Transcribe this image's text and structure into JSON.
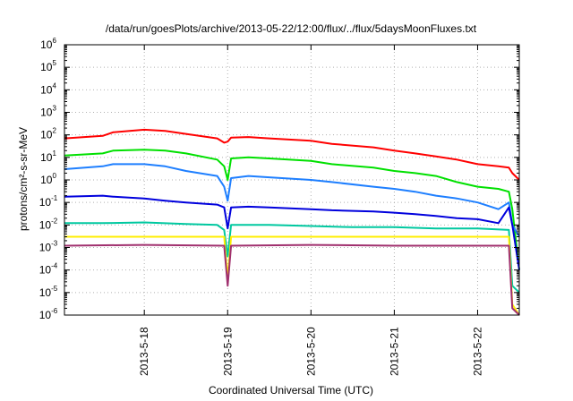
{
  "chart_data": {
    "type": "line",
    "title": "/data/run/goesPlots/archive/2013-05-22/12:00/flux/../flux/5daysMoonFluxes.txt",
    "xlabel": "Coordinated Universal Time (UTC)",
    "ylabel": "protons/cm²-s-sr-MeV",
    "yscale": "log",
    "ylim": [
      1e-06,
      1000000.0
    ],
    "xlim": [
      "2013-05-17 01:00",
      "2013-05-22 12:00"
    ],
    "grid": true,
    "legend": "none",
    "x_ticks": [
      "2013-5-18",
      "2013-5-19",
      "2013-5-20",
      "2013-5-21",
      "2013-5-22"
    ],
    "y_ticks": [
      {
        "base": "10",
        "exp": "-6"
      },
      {
        "base": "10",
        "exp": "-5"
      },
      {
        "base": "10",
        "exp": "-4"
      },
      {
        "base": "10",
        "exp": "-3"
      },
      {
        "base": "10",
        "exp": "-2"
      },
      {
        "base": "10",
        "exp": "-1"
      },
      {
        "base": "10",
        "exp": "0"
      },
      {
        "base": "10",
        "exp": "1"
      },
      {
        "base": "10",
        "exp": "2"
      },
      {
        "base": "10",
        "exp": "3"
      },
      {
        "base": "10",
        "exp": "4"
      },
      {
        "base": "10",
        "exp": "5"
      },
      {
        "base": "10",
        "exp": "6"
      }
    ],
    "series": [
      {
        "color": "#ff0000",
        "points": [
          [
            "2013-05-17 01:00",
            70
          ],
          [
            "2013-05-17 12:00",
            90
          ],
          [
            "2013-05-17 15:00",
            130
          ],
          [
            "2013-05-18 00:00",
            170
          ],
          [
            "2013-05-18 06:00",
            150
          ],
          [
            "2013-05-18 12:00",
            110
          ],
          [
            "2013-05-18 21:00",
            70
          ],
          [
            "2013-05-18 23:00",
            45
          ],
          [
            "2013-05-19 00:00",
            50
          ],
          [
            "2013-05-19 01:00",
            75
          ],
          [
            "2013-05-19 06:00",
            80
          ],
          [
            "2013-05-19 12:00",
            70
          ],
          [
            "2013-05-20 00:00",
            55
          ],
          [
            "2013-05-20 06:00",
            40
          ],
          [
            "2013-05-20 18:00",
            28
          ],
          [
            "2013-05-21 00:00",
            20
          ],
          [
            "2013-05-21 06:00",
            15
          ],
          [
            "2013-05-21 12:00",
            11
          ],
          [
            "2013-05-21 18:00",
            8
          ],
          [
            "2013-05-22 00:00",
            5
          ],
          [
            "2013-05-22 06:00",
            4
          ],
          [
            "2013-05-22 09:00",
            3.5
          ],
          [
            "2013-05-22 10:00",
            2
          ],
          [
            "2013-05-22 12:00",
            1
          ]
        ]
      },
      {
        "color": "#00e000",
        "points": [
          [
            "2013-05-17 01:00",
            12
          ],
          [
            "2013-05-17 12:00",
            15
          ],
          [
            "2013-05-17 15:00",
            20
          ],
          [
            "2013-05-18 00:00",
            22
          ],
          [
            "2013-05-18 06:00",
            20
          ],
          [
            "2013-05-18 12:00",
            15
          ],
          [
            "2013-05-18 21:00",
            8
          ],
          [
            "2013-05-18 23:00",
            4
          ],
          [
            "2013-05-19 00:00",
            1
          ],
          [
            "2013-05-19 01:00",
            9
          ],
          [
            "2013-05-19 06:00",
            10
          ],
          [
            "2013-05-19 12:00",
            9
          ],
          [
            "2013-05-20 00:00",
            7
          ],
          [
            "2013-05-20 06:00",
            5
          ],
          [
            "2013-05-20 18:00",
            3.5
          ],
          [
            "2013-05-21 00:00",
            2.5
          ],
          [
            "2013-05-21 06:00",
            2
          ],
          [
            "2013-05-21 12:00",
            1.5
          ],
          [
            "2013-05-21 18:00",
            0.8
          ],
          [
            "2013-05-22 00:00",
            0.5
          ],
          [
            "2013-05-22 06:00",
            0.4
          ],
          [
            "2013-05-22 09:00",
            0.3
          ],
          [
            "2013-05-22 10:00",
            0.05
          ],
          [
            "2013-05-22 12:00",
            0.0001
          ]
        ]
      },
      {
        "color": "#1e7fff",
        "points": [
          [
            "2013-05-17 01:00",
            3
          ],
          [
            "2013-05-17 12:00",
            4
          ],
          [
            "2013-05-17 15:00",
            5
          ],
          [
            "2013-05-18 00:00",
            5
          ],
          [
            "2013-05-18 06:00",
            4
          ],
          [
            "2013-05-18 12:00",
            2.5
          ],
          [
            "2013-05-18 21:00",
            1.5
          ],
          [
            "2013-05-18 23:00",
            0.5
          ],
          [
            "2013-05-19 00:00",
            0.12
          ],
          [
            "2013-05-19 01:00",
            1.2
          ],
          [
            "2013-05-19 06:00",
            1.5
          ],
          [
            "2013-05-19 12:00",
            1.3
          ],
          [
            "2013-05-20 00:00",
            1
          ],
          [
            "2013-05-20 06:00",
            0.8
          ],
          [
            "2013-05-20 18:00",
            0.5
          ],
          [
            "2013-05-21 00:00",
            0.4
          ],
          [
            "2013-05-21 06:00",
            0.3
          ],
          [
            "2013-05-21 12:00",
            0.2
          ],
          [
            "2013-05-21 18:00",
            0.15
          ],
          [
            "2013-05-22 00:00",
            0.1
          ],
          [
            "2013-05-22 06:00",
            0.05
          ],
          [
            "2013-05-22 09:00",
            0.1
          ],
          [
            "2013-05-22 10:00",
            0.01
          ],
          [
            "2013-05-22 12:00",
            0.003
          ]
        ]
      },
      {
        "color": "#0000dd",
        "points": [
          [
            "2013-05-17 01:00",
            0.18
          ],
          [
            "2013-05-17 12:00",
            0.2
          ],
          [
            "2013-05-17 15:00",
            0.18
          ],
          [
            "2013-05-18 00:00",
            0.15
          ],
          [
            "2013-05-18 06:00",
            0.12
          ],
          [
            "2013-05-18 12:00",
            0.1
          ],
          [
            "2013-05-18 21:00",
            0.08
          ],
          [
            "2013-05-18 23:00",
            0.06
          ],
          [
            "2013-05-19 00:00",
            0.007
          ],
          [
            "2013-05-19 01:00",
            0.06
          ],
          [
            "2013-05-19 06:00",
            0.065
          ],
          [
            "2013-05-19 12:00",
            0.06
          ],
          [
            "2013-05-20 00:00",
            0.05
          ],
          [
            "2013-05-20 06:00",
            0.045
          ],
          [
            "2013-05-20 18:00",
            0.04
          ],
          [
            "2013-05-21 00:00",
            0.035
          ],
          [
            "2013-05-21 06:00",
            0.03
          ],
          [
            "2013-05-21 12:00",
            0.025
          ],
          [
            "2013-05-21 18:00",
            0.02
          ],
          [
            "2013-05-22 00:00",
            0.018
          ],
          [
            "2013-05-22 06:00",
            0.012
          ],
          [
            "2013-05-22 09:00",
            0.06
          ],
          [
            "2013-05-22 10:00",
            0.01
          ],
          [
            "2013-05-22 12:00",
            0.0001
          ]
        ]
      },
      {
        "color": "#00c8a0",
        "points": [
          [
            "2013-05-17 01:00",
            0.012
          ],
          [
            "2013-05-17 12:00",
            0.012
          ],
          [
            "2013-05-18 00:00",
            0.013
          ],
          [
            "2013-05-18 12:00",
            0.011
          ],
          [
            "2013-05-18 21:00",
            0.01
          ],
          [
            "2013-05-18 23:00",
            0.006
          ],
          [
            "2013-05-19 00:00",
            0.0004
          ],
          [
            "2013-05-19 01:00",
            0.01
          ],
          [
            "2013-05-19 12:00",
            0.01
          ],
          [
            "2013-05-20 00:00",
            0.009
          ],
          [
            "2013-05-20 12:00",
            0.008
          ],
          [
            "2013-05-21 00:00",
            0.008
          ],
          [
            "2013-05-21 12:00",
            0.007
          ],
          [
            "2013-05-22 00:00",
            0.007
          ],
          [
            "2013-05-22 09:00",
            0.006
          ],
          [
            "2013-05-22 10:00",
            2e-05
          ],
          [
            "2013-05-22 12:00",
            1e-05
          ]
        ]
      },
      {
        "color": "#ffee00",
        "points": [
          [
            "2013-05-17 01:00",
            0.003
          ],
          [
            "2013-05-18 00:00",
            0.003
          ],
          [
            "2013-05-18 23:00",
            0.003
          ],
          [
            "2013-05-19 00:00",
            4e-05
          ],
          [
            "2013-05-19 01:00",
            0.003
          ],
          [
            "2013-05-20 00:00",
            0.003
          ],
          [
            "2013-05-21 00:00",
            0.003
          ],
          [
            "2013-05-22 00:00",
            0.003
          ],
          [
            "2013-05-22 09:00",
            0.003
          ],
          [
            "2013-05-22 10:00",
            3e-06
          ],
          [
            "2013-05-22 12:00",
            1e-06
          ]
        ]
      },
      {
        "color": "#a0306e",
        "points": [
          [
            "2013-05-17 01:00",
            0.0012
          ],
          [
            "2013-05-18 00:00",
            0.0013
          ],
          [
            "2013-05-18 23:00",
            0.0012
          ],
          [
            "2013-05-19 00:00",
            2e-05
          ],
          [
            "2013-05-19 01:00",
            0.0012
          ],
          [
            "2013-05-20 00:00",
            0.0013
          ],
          [
            "2013-05-21 00:00",
            0.0012
          ],
          [
            "2013-05-22 00:00",
            0.0012
          ],
          [
            "2013-05-22 09:00",
            0.0012
          ],
          [
            "2013-05-22 10:00",
            2e-06
          ],
          [
            "2013-05-22 12:00",
            1e-06
          ]
        ]
      }
    ]
  }
}
